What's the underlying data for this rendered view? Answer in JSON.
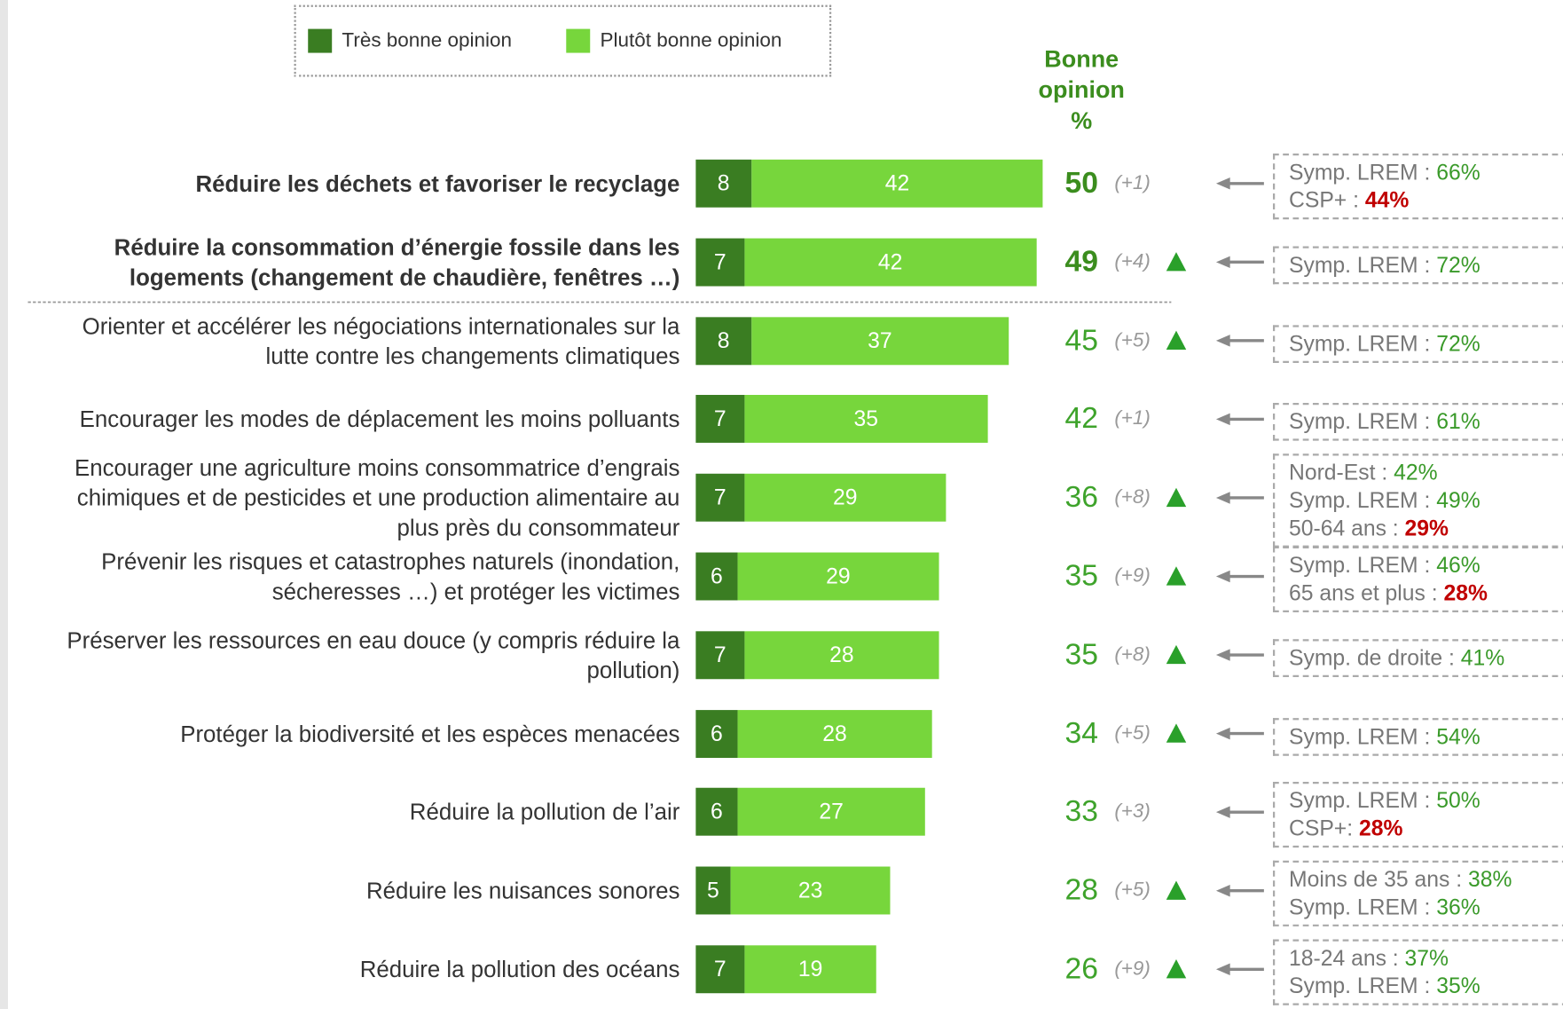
{
  "chart_data": {
    "type": "bar",
    "orientation": "horizontal",
    "stacked": true,
    "legend": "top",
    "categories": [
      "Réduire les déchets et favoriser le recyclage",
      "Réduire la consommation d’énergie fossile dans les\nlogements (changement de chaudière, fenêtres …)",
      "Orienter et accélérer les négociations internationales sur la\nlutte contre les changements climatiques",
      "Encourager les modes de déplacement les moins polluants",
      "Encourager une agriculture moins consommatrice d’engrais\nchimiques et de pesticides et une production alimentaire au\nplus près du consommateur",
      "Prévenir les risques et catastrophes naturels (inondation,\nsécheresses …) et protéger les victimes",
      "Préserver les ressources en eau douce (y compris réduire la\npollution)",
      "Protéger la biodiversité et les espèces menacées",
      "Réduire la pollution de l’air",
      "Réduire les nuisances sonores",
      "Réduire la pollution des océans"
    ],
    "series": [
      {
        "name": "Très bonne opinion",
        "color": "#3a7d22",
        "values": [
          8,
          7,
          8,
          7,
          7,
          6,
          7,
          6,
          6,
          5,
          7
        ]
      },
      {
        "name": "Plutôt bonne opinion",
        "color": "#77d63c",
        "values": [
          42,
          42,
          37,
          35,
          29,
          29,
          28,
          28,
          27,
          23,
          19
        ]
      }
    ],
    "totals_title": "Bonne opinion\n%",
    "totals": [
      50,
      49,
      45,
      42,
      36,
      35,
      35,
      34,
      33,
      28,
      26
    ],
    "changes": [
      1,
      4,
      5,
      1,
      8,
      9,
      8,
      5,
      3,
      5,
      9
    ],
    "change_labels": [
      "(+1)",
      "(+4)",
      "(+5)",
      "(+1)",
      "(+8)",
      "(+9)",
      "(+8)",
      "(+5)",
      "(+3)",
      "(+5)",
      "(+9)"
    ],
    "significant": [
      false,
      true,
      true,
      false,
      true,
      true,
      true,
      true,
      false,
      true,
      true
    ],
    "notes": [
      [
        {
          "label": "Symp. LREM : ",
          "value": "66%",
          "color": "#3a9a2a"
        },
        {
          "label": "CSP+ : ",
          "value": "44%",
          "color": "#c00000"
        }
      ],
      [
        {
          "label": "Symp. LREM : ",
          "value": "72%",
          "color": "#3a9a2a"
        }
      ],
      [
        {
          "label": "Symp. LREM : ",
          "value": "72%",
          "color": "#3a9a2a"
        }
      ],
      [
        {
          "label": "Symp. LREM : ",
          "value": "61%",
          "color": "#3a9a2a"
        }
      ],
      [
        {
          "label": "Nord-Est : ",
          "value": "42%",
          "color": "#3a9a2a"
        },
        {
          "label": "Symp. LREM : ",
          "value": "49%",
          "color": "#3a9a2a"
        },
        {
          "label": "50-64 ans : ",
          "value": "29%",
          "color": "#c00000"
        }
      ],
      [
        {
          "label": "Symp. LREM : ",
          "value": "46%",
          "color": "#3a9a2a"
        },
        {
          "label": "65 ans et plus : ",
          "value": "28%",
          "color": "#c00000"
        }
      ],
      [
        {
          "label": "Symp. de droite : ",
          "value": "41%",
          "color": "#3a9a2a"
        }
      ],
      [
        {
          "label": "Symp. LREM : ",
          "value": "54%",
          "color": "#3a9a2a"
        }
      ],
      [
        {
          "label": "Symp. LREM : ",
          "value": "50%",
          "color": "#3a9a2a"
        },
        {
          "label": "CSP+: ",
          "value": "28%",
          "color": "#c00000"
        }
      ],
      [
        {
          "label": "Moins de 35 ans : ",
          "value": "38%",
          "color": "#3a9a2a"
        },
        {
          "label": "Symp. LREM : ",
          "value": "36%",
          "color": "#3a9a2a"
        }
      ],
      [
        {
          "label": "18-24 ans : ",
          "value": "37%",
          "color": "#3a9a2a"
        },
        {
          "label": "Symp. LREM : ",
          "value": "35%",
          "color": "#3a9a2a"
        }
      ]
    ]
  }
}
